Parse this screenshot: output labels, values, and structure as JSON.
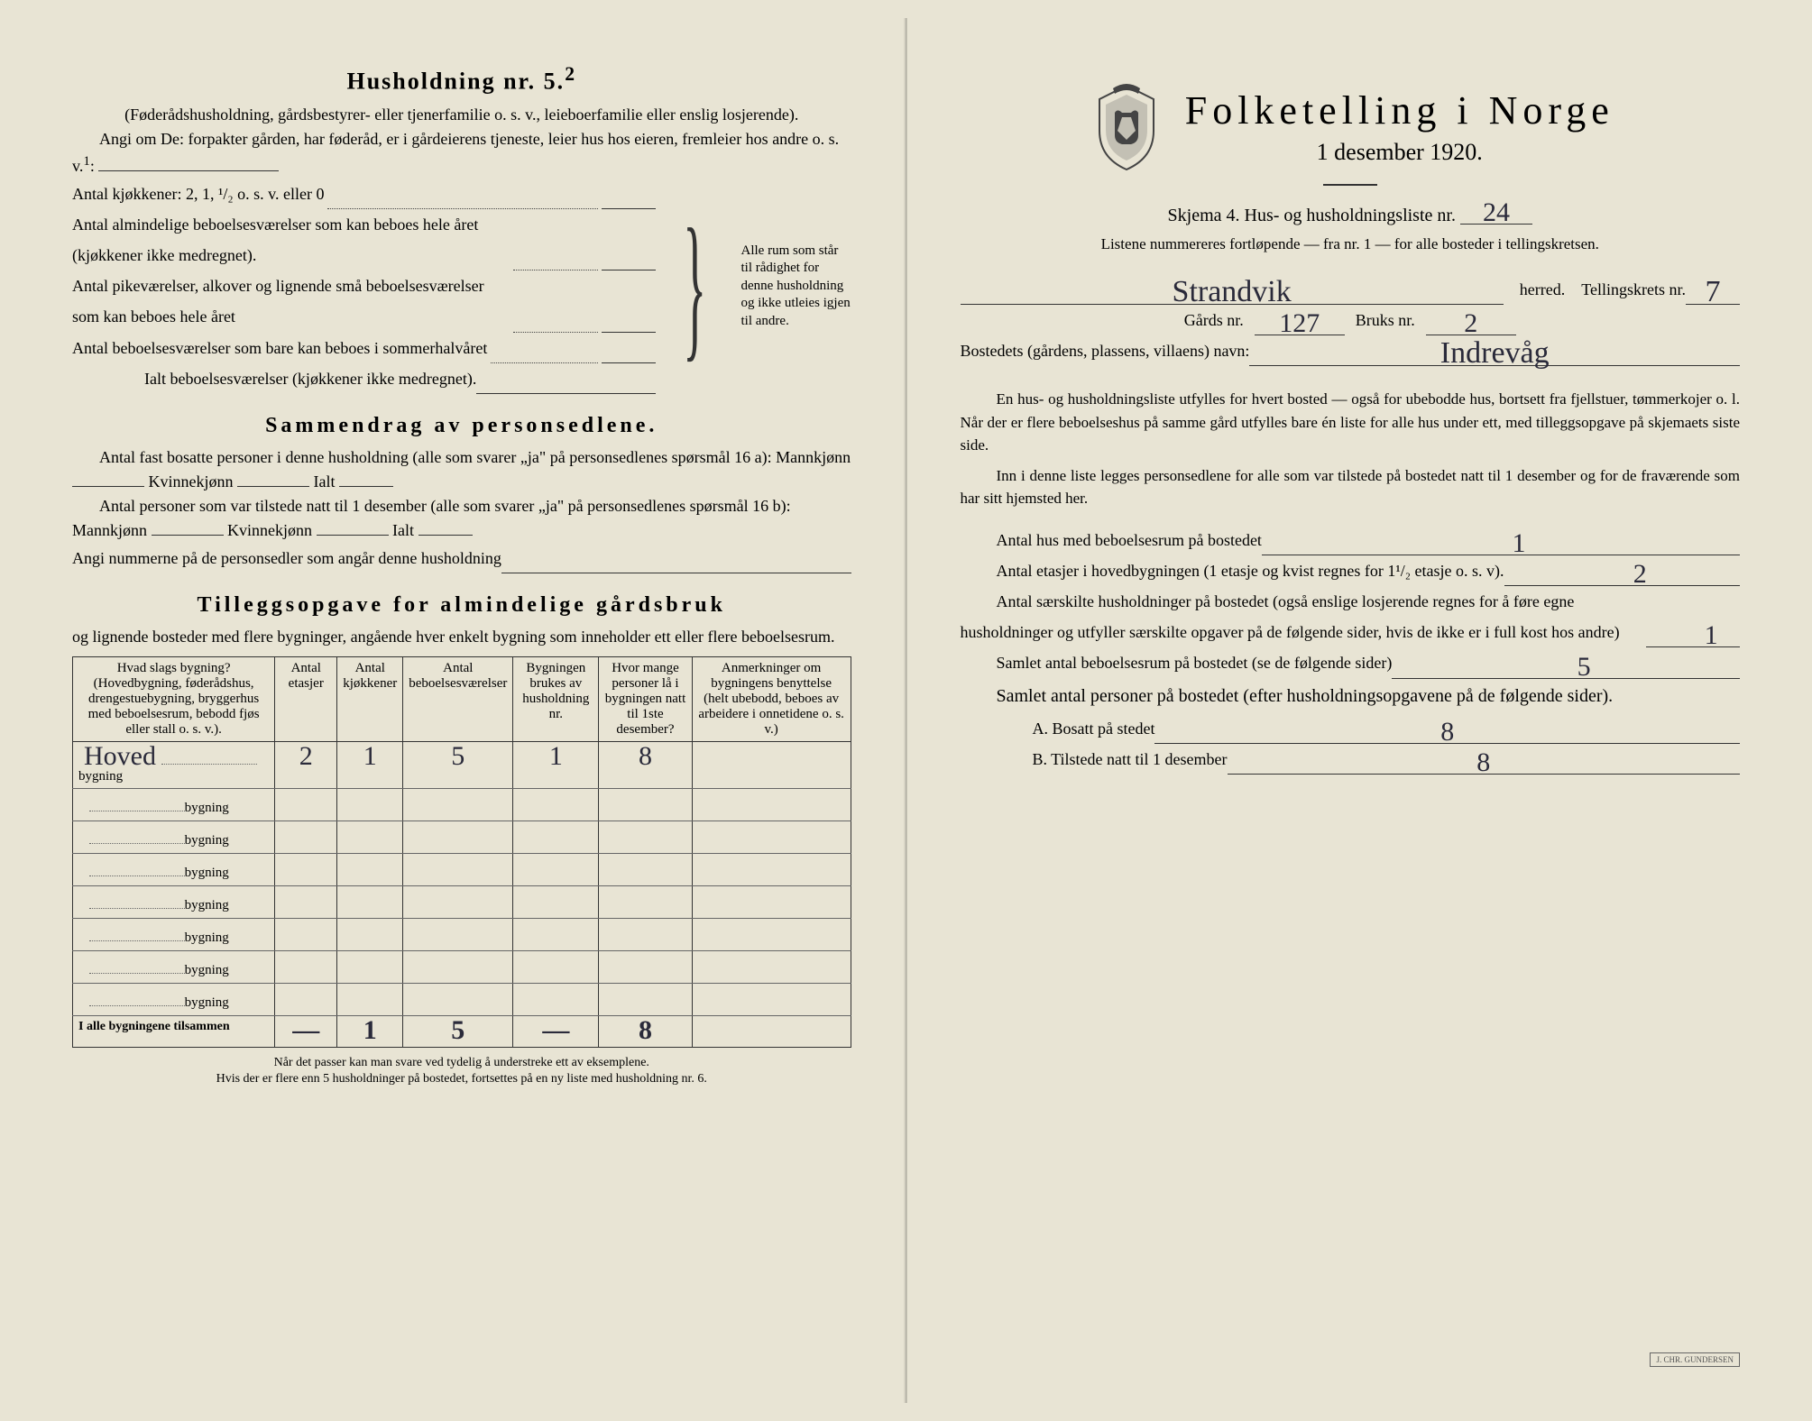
{
  "left": {
    "household_heading": "Husholdning nr. 5.",
    "household_sup": "2",
    "household_desc": "(Føderådshusholdning, gårdsbestyrer- eller tjenerfamilie o. s. v., leieboerfamilie eller enslig losjerende).",
    "household_intro": "Angi om De: forpakter gården, har føderåd, er i gårdeierens tjeneste, leier hus hos eieren, fremleier hos andre o. s. v.",
    "household_sup1": "1",
    "kitchens_label": "Antal kjøkkener: 2, 1, ¹/₂ o. s. v. eller 0",
    "rooms1": "Antal almindelige beboelsesværelser som kan beboes hele året (kjøkkener ikke medregnet).",
    "rooms2": "Antal pikeværelser, alkover og lignende små beboelsesværelser som kan beboes hele året",
    "rooms3": "Antal beboelsesværelser som bare kan beboes i sommerhalvåret",
    "rooms_total": "Ialt beboelsesværelser (kjøkkener ikke medregnet).",
    "brace_note": "Alle rum som står til rådighet for denne husholdning og ikke utleies igjen til andre.",
    "summary_heading": "Sammendrag av personsedlene.",
    "summary_line1a": "Antal fast bosatte personer i denne husholdning (alle som svarer „ja\" på personsedlenes spørsmål 16 a): Mannkjønn",
    "summary_kvinne": "Kvinnekjønn",
    "summary_ialt": "Ialt",
    "summary_line2": "Antal personer som var tilstede natt til 1 desember (alle som svarer „ja\" på personsedlenes spørsmål 16 b): Mannkjønn",
    "summary_line3": "Angi nummerne på de personsedler som angår denne husholdning",
    "tillegg_heading": "Tilleggsopgave for almindelige gårdsbruk",
    "tillegg_desc": "og lignende bosteder med flere bygninger, angående hver enkelt bygning som inneholder ett eller flere beboelsesrum.",
    "table": {
      "headers": [
        "Hvad slags bygning?\n(Hovedbygning, føderådshus, drengestuebygning, bryggerhus med beboelsesrum, bebodd fjøs eller stall o. s. v.).",
        "Antal etasjer",
        "Antal kjøkkener",
        "Antal beboelsesværelser",
        "Bygningen brukes av husholdning nr.",
        "Hvor mange personer lå i bygningen natt til 1ste desember?",
        "Anmerkninger om bygningens benyttelse (helt ubebodd, beboes av arbeidere i onnetidene o. s. v.)"
      ],
      "row_suffix": "bygning",
      "rows": [
        {
          "label": "Hoved",
          "etasjer": "2",
          "kjokken": "1",
          "bebo": "5",
          "hush": "1",
          "pers": "8",
          "anm": ""
        },
        {
          "label": "",
          "etasjer": "",
          "kjokken": "",
          "bebo": "",
          "hush": "",
          "pers": "",
          "anm": ""
        },
        {
          "label": "",
          "etasjer": "",
          "kjokken": "",
          "bebo": "",
          "hush": "",
          "pers": "",
          "anm": ""
        },
        {
          "label": "",
          "etasjer": "",
          "kjokken": "",
          "bebo": "",
          "hush": "",
          "pers": "",
          "anm": ""
        },
        {
          "label": "",
          "etasjer": "",
          "kjokken": "",
          "bebo": "",
          "hush": "",
          "pers": "",
          "anm": ""
        },
        {
          "label": "",
          "etasjer": "",
          "kjokken": "",
          "bebo": "",
          "hush": "",
          "pers": "",
          "anm": ""
        },
        {
          "label": "",
          "etasjer": "",
          "kjokken": "",
          "bebo": "",
          "hush": "",
          "pers": "",
          "anm": ""
        },
        {
          "label": "",
          "etasjer": "",
          "kjokken": "",
          "bebo": "",
          "hush": "",
          "pers": "",
          "anm": ""
        }
      ],
      "total_label": "I alle bygningene tilsammen",
      "total": {
        "etasjer": "—",
        "kjokken": "1",
        "bebo": "5",
        "hush": "—",
        "pers": "8",
        "anm": ""
      }
    },
    "footnote1": "Når det passer kan man svare ved tydelig å understreke ett av eksemplene.",
    "footnote2": "Hvis der er flere enn 5 husholdninger på bostedet, fortsettes på en ny liste med husholdning nr. 6."
  },
  "right": {
    "main_title": "Folketelling i Norge",
    "date": "1 desember 1920.",
    "skjema_line": "Skjema 4. Hus- og husholdningsliste nr.",
    "liste_nr": "24",
    "listene_note": "Listene nummereres fortløpende — fra nr. 1 — for alle bosteder i tellingskretsen.",
    "herred": "Strandvik",
    "herred_label": "herred.",
    "tellingskrets_label": "Tellingskrets nr.",
    "tellingskrets": "7",
    "gards_label": "Gårds nr.",
    "gards": "127",
    "bruks_label": "Bruks nr.",
    "bruks": "2",
    "bosted_label": "Bostedets (gårdens, plassens, villaens) navn:",
    "bosted": "Indrevåg",
    "para1": "En hus- og husholdningsliste utfylles for hvert bosted — også for ubebodde hus, bortsett fra fjellstuer, tømmerkojer o. l. Når der er flere beboelseshus på samme gård utfylles bare én liste for alle hus under ett, med tilleggsopgave på skjemaets siste side.",
    "para2": "Inn i denne liste legges personsedlene for alle som var tilstede på bostedet natt til 1 desember og for de fraværende som har sitt hjemsted her.",
    "q1": "Antal hus med beboelsesrum på bostedet",
    "q1v": "1",
    "q2": "Antal etasjer i hovedbygningen (1 etasje og kvist regnes for 1¹/₂ etasje o. s. v).",
    "q2v": "2",
    "q3": "Antal særskilte husholdninger på bostedet (også enslige losjerende regnes for å føre egne husholdninger og utfyller særskilte opgaver på de følgende sider, hvis de ikke er i full kost hos andre)",
    "q3v": "1",
    "q4": "Samlet antal beboelsesrum på bostedet (se de følgende sider)",
    "q4v": "5",
    "q5": "Samlet antal personer på bostedet (efter husholdningsopgavene på de følgende sider).",
    "qA": "A. Bosatt på stedet",
    "qAv": "8",
    "qB": "B. Tilstede natt til 1 desember",
    "qBv": "8",
    "stamp": "J. CHR. GUNDERSEN"
  },
  "colors": {
    "paper": "#e8e4d4",
    "ink": "#1a1a1a",
    "handwriting": "#2a2a3a"
  }
}
